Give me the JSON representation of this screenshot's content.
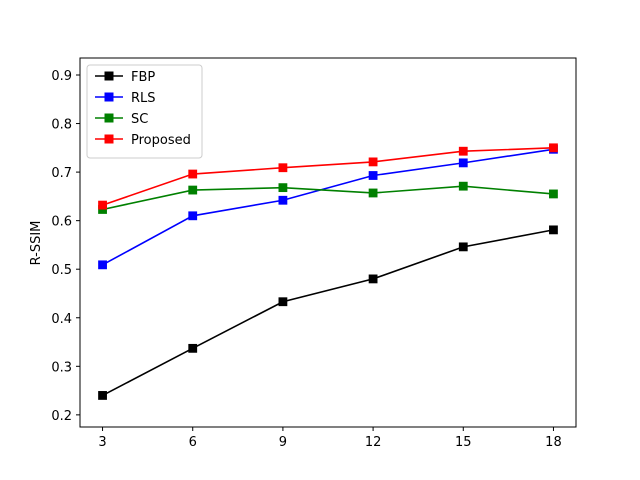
{
  "chart_data": {
    "type": "line",
    "title": "",
    "xlabel": "",
    "ylabel": "R-SSIM",
    "x": [
      3,
      6,
      9,
      12,
      15,
      18
    ],
    "xlim": [
      2.25,
      18.75
    ],
    "ylim": [
      0.175,
      0.935
    ],
    "xticks": [
      "3",
      "6",
      "9",
      "12",
      "15",
      "18"
    ],
    "yticks": [
      "0.2",
      "0.3",
      "0.4",
      "0.5",
      "0.6",
      "0.7",
      "0.8",
      "0.9"
    ],
    "grid": false,
    "legend_position": "top-left",
    "marker": "square",
    "series": [
      {
        "name": "FBP",
        "color": "#000000",
        "values": [
          0.24,
          0.337,
          0.433,
          0.48,
          0.546,
          0.581
        ]
      },
      {
        "name": "RLS",
        "color": "#0000ff",
        "values": [
          0.509,
          0.61,
          0.642,
          0.693,
          0.719,
          0.747
        ]
      },
      {
        "name": "SC",
        "color": "#008000",
        "values": [
          0.623,
          0.663,
          0.668,
          0.657,
          0.671,
          0.655
        ]
      },
      {
        "name": "Proposed",
        "color": "#ff0000",
        "values": [
          0.632,
          0.696,
          0.709,
          0.721,
          0.743,
          0.75
        ]
      }
    ]
  }
}
